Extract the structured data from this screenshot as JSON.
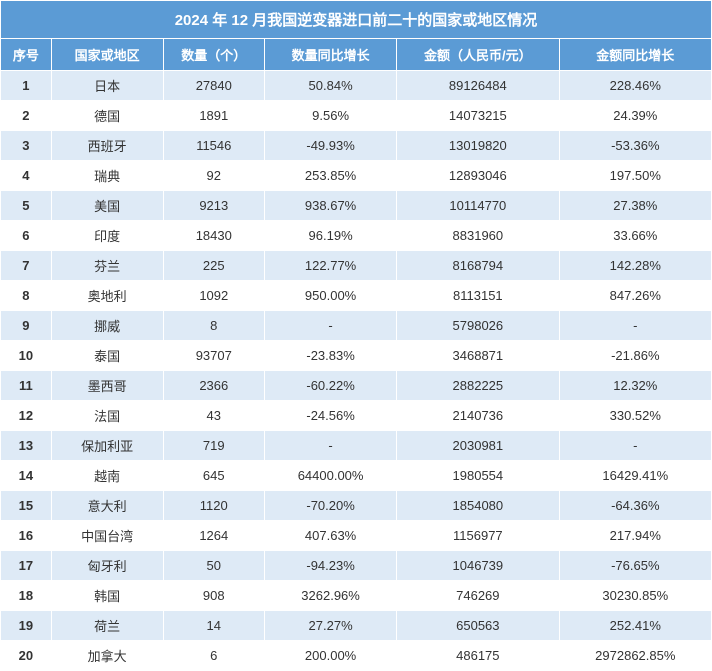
{
  "title": "2024 年 12 月我国逆变器进口前二十的国家或地区情况",
  "columns": [
    "序号",
    "国家或地区",
    "数量（个）",
    "数量同比增长",
    "金额（人民币/元）",
    "金额同比增长"
  ],
  "rows": [
    [
      "1",
      "日本",
      "27840",
      "50.84%",
      "89126484",
      "228.46%"
    ],
    [
      "2",
      "德国",
      "1891",
      "9.56%",
      "14073215",
      "24.39%"
    ],
    [
      "3",
      "西班牙",
      "11546",
      "-49.93%",
      "13019820",
      "-53.36%"
    ],
    [
      "4",
      "瑞典",
      "92",
      "253.85%",
      "12893046",
      "197.50%"
    ],
    [
      "5",
      "美国",
      "9213",
      "938.67%",
      "10114770",
      "27.38%"
    ],
    [
      "6",
      "印度",
      "18430",
      "96.19%",
      "8831960",
      "33.66%"
    ],
    [
      "7",
      "芬兰",
      "225",
      "122.77%",
      "8168794",
      "142.28%"
    ],
    [
      "8",
      "奥地利",
      "1092",
      "950.00%",
      "8113151",
      "847.26%"
    ],
    [
      "9",
      "挪威",
      "8",
      "-",
      "5798026",
      "-"
    ],
    [
      "10",
      "泰国",
      "93707",
      "-23.83%",
      "3468871",
      "-21.86%"
    ],
    [
      "11",
      "墨西哥",
      "2366",
      "-60.22%",
      "2882225",
      "12.32%"
    ],
    [
      "12",
      "法国",
      "43",
      "-24.56%",
      "2140736",
      "330.52%"
    ],
    [
      "13",
      "保加利亚",
      "719",
      "-",
      "2030981",
      "-"
    ],
    [
      "14",
      "越南",
      "645",
      "64400.00%",
      "1980554",
      "16429.41%"
    ],
    [
      "15",
      "意大利",
      "1120",
      "-70.20%",
      "1854080",
      "-64.36%"
    ],
    [
      "16",
      "中国台湾",
      "1264",
      "407.63%",
      "1156977",
      "217.94%"
    ],
    [
      "17",
      "匈牙利",
      "50",
      "-94.23%",
      "1046739",
      "-76.65%"
    ],
    [
      "18",
      "韩国",
      "908",
      "3262.96%",
      "746269",
      "30230.85%"
    ],
    [
      "19",
      "荷兰",
      "14",
      "27.27%",
      "650563",
      "252.41%"
    ],
    [
      "20",
      "加拿大",
      "6",
      "200.00%",
      "486175",
      "2972862.85%"
    ]
  ],
  "colors": {
    "header_bg": "#5b9bd5",
    "header_text": "#ffffff",
    "row_odd_bg": "#deeaf6",
    "row_even_bg": "#ffffff",
    "text_color": "#333333",
    "border_color": "#ffffff"
  },
  "font_sizes": {
    "title": 15,
    "header": 13,
    "data": 13
  }
}
